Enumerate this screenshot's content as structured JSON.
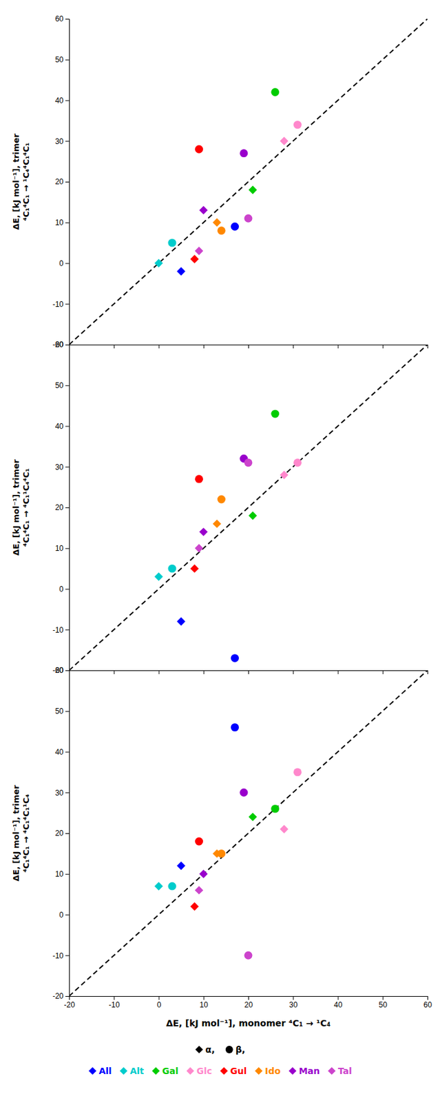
{
  "chart_data": [
    {
      "type": "scatter",
      "y_label": "ΔE, [kJ mol⁻¹], trimer\n⁴C₁⁴C₁ → ¹C₄⁴C₁⁴C₁",
      "xlim": [
        -20,
        60
      ],
      "ylim": [
        -20,
        60
      ],
      "xticks": [
        -20,
        -10,
        0,
        10,
        20,
        30,
        40,
        50,
        60
      ],
      "yticks": [
        -20,
        -10,
        0,
        10,
        20,
        30,
        40,
        50,
        60
      ],
      "tick_labels": "y",
      "reference_line": {
        "x": [
          -20,
          60
        ],
        "values": [
          -20,
          60
        ],
        "line_style": "dashed",
        "color": "#000000"
      },
      "series": [
        {
          "marker": "diamond",
          "x": [
            5,
            0,
            21,
            28,
            8,
            13,
            10,
            9
          ],
          "values": [
            -2,
            0,
            18,
            30,
            1,
            10,
            13,
            3
          ],
          "colors": [
            "#0000ff",
            "#00cccc",
            "#00cc00",
            "#ff88cc",
            "#ff0000",
            "#ff8800",
            "#9900cc",
            "#cc44cc"
          ]
        },
        {
          "marker": "circle",
          "x": [
            17,
            3,
            26,
            31,
            9,
            14,
            19,
            20
          ],
          "values": [
            9,
            5,
            42,
            34,
            28,
            8,
            27,
            11
          ],
          "colors": [
            "#0000ff",
            "#00cccc",
            "#00cc00",
            "#ff88cc",
            "#ff0000",
            "#ff8800",
            "#9900cc",
            "#cc44cc"
          ]
        }
      ]
    },
    {
      "type": "scatter",
      "y_label": "ΔE, [kJ mol⁻¹], trimer\n⁴C₁⁴C₁ → ⁴C₁¹C₄⁴C₁",
      "xlim": [
        -20,
        60
      ],
      "ylim": [
        -20,
        60
      ],
      "xticks": [
        -20,
        -10,
        0,
        10,
        20,
        30,
        40,
        50,
        60
      ],
      "yticks": [
        -20,
        -10,
        0,
        10,
        20,
        30,
        40,
        50,
        60
      ],
      "tick_labels": "y",
      "reference_line": {
        "x": [
          -20,
          60
        ],
        "values": [
          -20,
          60
        ],
        "line_style": "dashed",
        "color": "#000000"
      },
      "series": [
        {
          "marker": "diamond",
          "x": [
            5,
            0,
            21,
            28,
            8,
            13,
            10,
            9
          ],
          "values": [
            -8,
            3,
            18,
            28,
            5,
            16,
            14,
            10
          ],
          "colors": [
            "#0000ff",
            "#00cccc",
            "#00cc00",
            "#ff88cc",
            "#ff0000",
            "#ff8800",
            "#9900cc",
            "#cc44cc"
          ]
        },
        {
          "marker": "circle",
          "x": [
            17,
            3,
            26,
            31,
            9,
            14,
            19,
            20
          ],
          "values": [
            -17,
            5,
            43,
            31,
            27,
            22,
            32,
            31
          ],
          "colors": [
            "#0000ff",
            "#00cccc",
            "#00cc00",
            "#ff88cc",
            "#ff0000",
            "#ff8800",
            "#9900cc",
            "#cc44cc"
          ]
        }
      ]
    },
    {
      "type": "scatter",
      "y_label": "ΔE, [kJ mol⁻¹], trimer\n⁴C₁⁴C₁ → ⁴C₁⁴C₁¹C₄",
      "x_label": "ΔE, [kJ mol⁻¹], monomer ⁴C₁ → ¹C₄",
      "xlim": [
        -20,
        60
      ],
      "ylim": [
        -20,
        60
      ],
      "xticks": [
        -20,
        -10,
        0,
        10,
        20,
        30,
        40,
        50,
        60
      ],
      "yticks": [
        -20,
        -10,
        0,
        10,
        20,
        30,
        40,
        50,
        60
      ],
      "reference_line": {
        "x": [
          -20,
          60
        ],
        "values": [
          -20,
          60
        ],
        "line_style": "dashed",
        "color": "#000000"
      },
      "legend": "bottom",
      "categories": [
        "All",
        "Alt",
        "Gal",
        "Glc",
        "Gul",
        "Ido",
        "Man",
        "Tal"
      ],
      "colors": [
        "#0000ff",
        "#00cccc",
        "#00cc00",
        "#ff88cc",
        "#ff0000",
        "#ff8800",
        "#9900cc",
        "#cc44cc"
      ],
      "series": [
        {
          "name": "α,",
          "color": "#000000",
          "marker": "diamond",
          "x": [
            5,
            0,
            21,
            28,
            8,
            13,
            10,
            9
          ],
          "values": [
            12,
            7,
            24,
            21,
            2,
            15,
            10,
            6
          ],
          "colors": [
            "#0000ff",
            "#00cccc",
            "#00cc00",
            "#ff88cc",
            "#ff0000",
            "#ff8800",
            "#9900cc",
            "#cc44cc"
          ]
        },
        {
          "name": "β,",
          "color": "#000000",
          "marker": "circle",
          "x": [
            17,
            3,
            26,
            31,
            9,
            14,
            19,
            20
          ],
          "values": [
            46,
            7,
            26,
            35,
            18,
            15,
            30,
            -10
          ],
          "colors": [
            "#0000ff",
            "#00cccc",
            "#00cc00",
            "#ff88cc",
            "#ff0000",
            "#ff8800",
            "#9900cc",
            "#cc44cc"
          ]
        }
      ]
    }
  ]
}
